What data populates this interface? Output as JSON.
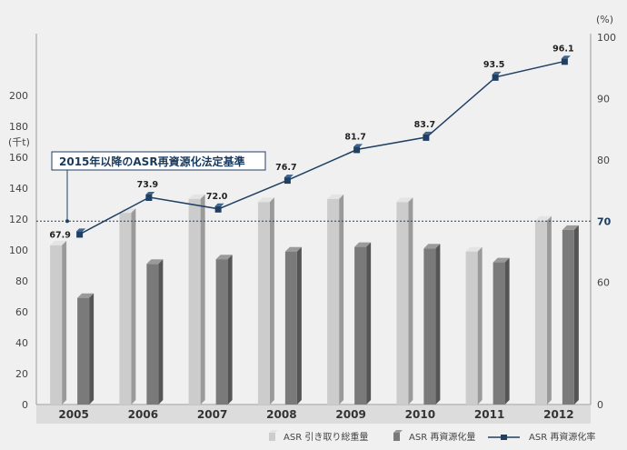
{
  "chart_data": {
    "type": "bar",
    "categories": [
      "2005",
      "2006",
      "2007",
      "2008",
      "2009",
      "2010",
      "2011",
      "2012"
    ],
    "left_axis": {
      "unit": "(千t)",
      "ticks": [
        0,
        20,
        40,
        60,
        80,
        100,
        120,
        140,
        160,
        180,
        200
      ],
      "ylim": [
        0,
        200
      ]
    },
    "right_axis": {
      "unit": "(%)",
      "ticks": [
        0,
        60,
        70,
        80,
        90,
        100
      ],
      "ylim": [
        0,
        100
      ]
    },
    "series": [
      {
        "name": "ASR 引き取り総重量",
        "type": "bar",
        "axis": "left",
        "color": "#cccccc",
        "values": [
          103,
          124,
          133,
          131,
          133,
          131,
          99,
          119
        ]
      },
      {
        "name": "ASR 再資源化量",
        "type": "bar",
        "axis": "left",
        "color": "#7a7a7a",
        "values": [
          69,
          91,
          94,
          99,
          102,
          101,
          92,
          113
        ]
      },
      {
        "name": "ASR 再資源化率",
        "type": "line",
        "axis": "right",
        "color": "#1f3f63",
        "values": [
          67.9,
          73.9,
          72.0,
          76.7,
          81.7,
          83.7,
          93.5,
          96.1
        ],
        "labels": [
          "67.9",
          "73.9",
          "72.0",
          "76.7",
          "81.7",
          "83.7",
          "93.5",
          "96.1"
        ]
      }
    ],
    "reference_line": {
      "value": 70,
      "label": "70",
      "axis": "right"
    },
    "annotation": "2015年以降のASR再資源化法定基準",
    "legend_position": "bottom-right",
    "grid": false
  }
}
